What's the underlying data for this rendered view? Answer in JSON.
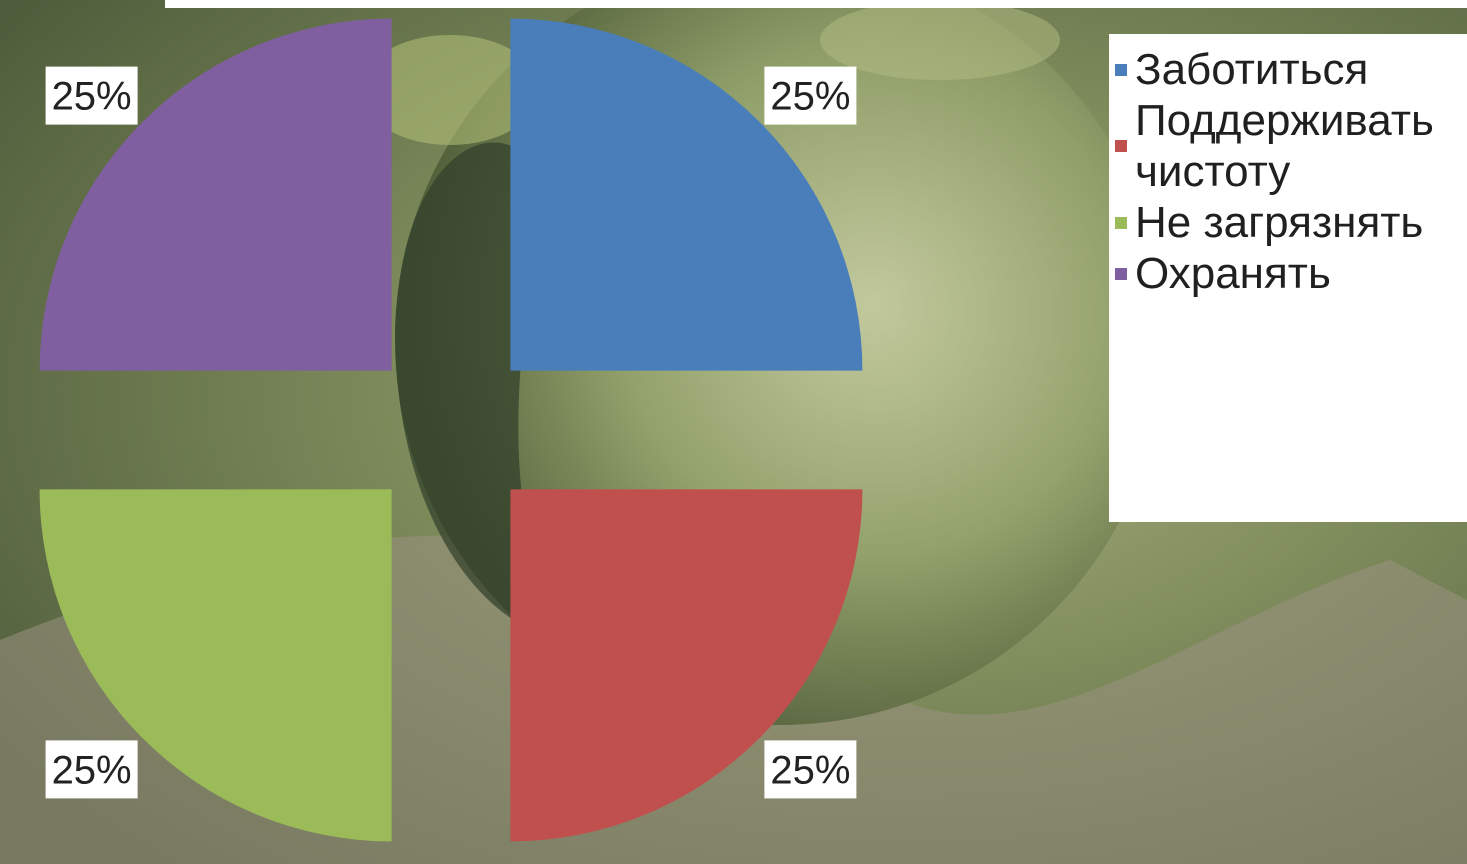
{
  "chart_data": {
    "type": "pie",
    "title": "",
    "exploded": true,
    "categories": [
      "Заботиться",
      "Поддерживать чистоту",
      "Не загрязнять",
      "Охранять"
    ],
    "values": [
      25,
      25,
      25,
      25
    ],
    "labels": [
      "25%",
      "25%",
      "25%",
      "25%"
    ],
    "colors": [
      "#4a7ebb",
      "#c0504d",
      "#9bbb59",
      "#7f5f9f"
    ],
    "legend_position": "right"
  },
  "legend": {
    "items": [
      {
        "label": "Заботиться",
        "color": "#4a7ebb"
      },
      {
        "label": "Поддерживать чистоту",
        "color": "#c0504d"
      },
      {
        "label": "Не загрязнять",
        "color": "#9bbb59"
      },
      {
        "label": "Охранять",
        "color": "#7f5f9f"
      }
    ]
  }
}
